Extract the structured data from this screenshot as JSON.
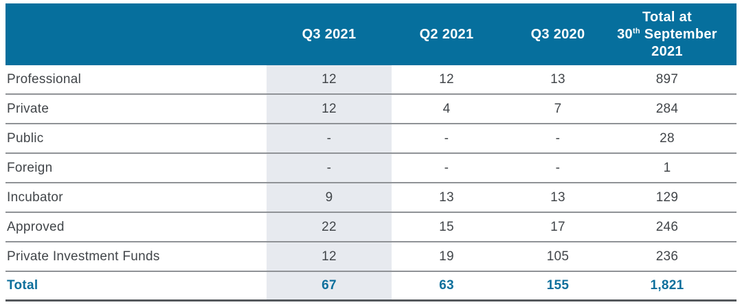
{
  "colors": {
    "header_bg": "#066f9d",
    "header_text": "#ffffff",
    "body_text": "#414549",
    "total_text": "#0d6f9c",
    "shaded_column_bg": "#e7eaef",
    "row_divider": "#8f9296",
    "bottom_border": "#54585c"
  },
  "header": {
    "col_label": "",
    "col_q3_2021": "Q3 2021",
    "col_q2_2021": "Q2 2021",
    "col_q3_2020": "Q3 2020",
    "total": {
      "line1": "Total at",
      "day": "30",
      "ordinal": "th",
      "month": " September",
      "line3": "2021"
    }
  },
  "chart_data": {
    "type": "table",
    "columns": [
      "",
      "Q3 2021",
      "Q2 2021",
      "Q3 2020",
      "Total at 30th September 2021"
    ],
    "rows": [
      {
        "label": "Professional",
        "values": [
          "12",
          "12",
          "13",
          "897"
        ]
      },
      {
        "label": "Private",
        "values": [
          "12",
          "4",
          "7",
          "284"
        ]
      },
      {
        "label": "Public",
        "values": [
          "-",
          "-",
          "-",
          "28"
        ]
      },
      {
        "label": "Foreign",
        "values": [
          "-",
          "-",
          "-",
          "1"
        ]
      },
      {
        "label": "Incubator",
        "values": [
          "9",
          "13",
          "13",
          "129"
        ]
      },
      {
        "label": "Approved",
        "values": [
          "22",
          "15",
          "17",
          "246"
        ]
      },
      {
        "label": "Private Investment Funds",
        "values": [
          "12",
          "19",
          "105",
          "236"
        ]
      }
    ],
    "total_row": {
      "label": "Total",
      "values": [
        "67",
        "63",
        "155",
        "1,821"
      ]
    },
    "layout": {
      "highlighted_column": "Q3 2021",
      "grid": "horizontal-only"
    }
  }
}
